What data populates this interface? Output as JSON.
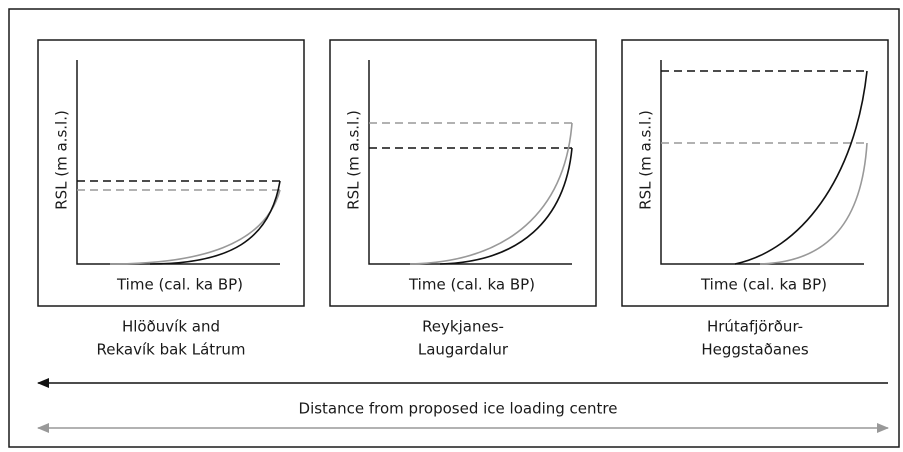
{
  "panels": [
    {
      "y_label": "RSL (m a.s.l.)",
      "x_label": "Time (cal. ka BP)",
      "caption": [
        "Hlöðuvík and",
        "Rekavík bak Látrum"
      ]
    },
    {
      "y_label": "RSL (m a.s.l.)",
      "x_label": "Time (cal. ka BP)",
      "caption": [
        "Reykjanes-",
        "Laugardalur"
      ]
    },
    {
      "y_label": "RSL (m a.s.l.)",
      "x_label": "Time (cal. ka BP)",
      "caption": [
        "Hrútafjörður-",
        "Heggstaðanes"
      ]
    }
  ],
  "arrow_label": "Distance from proposed ice loading centre"
}
